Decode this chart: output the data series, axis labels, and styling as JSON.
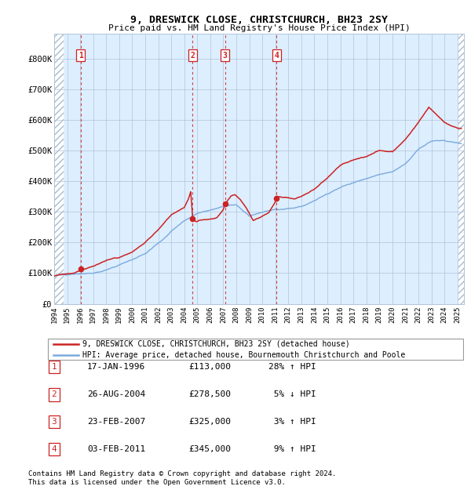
{
  "title": "9, DRESWICK CLOSE, CHRISTCHURCH, BH23 2SY",
  "subtitle": "Price paid vs. HM Land Registry's House Price Index (HPI)",
  "legend_line1": "9, DRESWICK CLOSE, CHRISTCHURCH, BH23 2SY (detached house)",
  "legend_line2": "HPI: Average price, detached house, Bournemouth Christchurch and Poole",
  "footnote1": "Contains HM Land Registry data © Crown copyright and database right 2024.",
  "footnote2": "This data is licensed under the Open Government Licence v3.0.",
  "transactions": [
    {
      "num": 1,
      "date": "17-JAN-1996",
      "price": 113000,
      "pct": "28%",
      "dir": "↑",
      "year": 1996.04
    },
    {
      "num": 2,
      "date": "26-AUG-2004",
      "price": 278500,
      "pct": "5%",
      "dir": "↓",
      "year": 2004.65
    },
    {
      "num": 3,
      "date": "23-FEB-2007",
      "price": 325000,
      "pct": "3%",
      "dir": "↑",
      "year": 2007.14
    },
    {
      "num": 4,
      "date": "03-FEB-2011",
      "price": 345000,
      "pct": "9%",
      "dir": "↑",
      "year": 2011.09
    }
  ],
  "table_rows": [
    [
      "1",
      "17-JAN-1996",
      "£113,000",
      "28% ↑ HPI"
    ],
    [
      "2",
      "26-AUG-2004",
      "£278,500",
      " 5% ↓ HPI"
    ],
    [
      "3",
      "23-FEB-2007",
      "£325,000",
      " 3% ↑ HPI"
    ],
    [
      "4",
      "03-FEB-2011",
      "£345,000",
      " 9% ↑ HPI"
    ]
  ],
  "xlim": [
    1994.0,
    2025.5
  ],
  "ylim": [
    0,
    880000
  ],
  "yticks": [
    0,
    100000,
    200000,
    300000,
    400000,
    500000,
    600000,
    700000,
    800000
  ],
  "ytick_labels": [
    "£0",
    "£100K",
    "£200K",
    "£300K",
    "£400K",
    "£500K",
    "£600K",
    "£700K",
    "£800K"
  ],
  "xticks": [
    1994,
    1995,
    1996,
    1997,
    1998,
    1999,
    2000,
    2001,
    2002,
    2003,
    2004,
    2005,
    2006,
    2007,
    2008,
    2009,
    2010,
    2011,
    2012,
    2013,
    2014,
    2015,
    2016,
    2017,
    2018,
    2019,
    2020,
    2021,
    2022,
    2023,
    2024,
    2025
  ],
  "hpi_color": "#7aaadd",
  "price_color": "#cc2222",
  "dot_color": "#cc2222",
  "bg_color": "#ddeeff",
  "hatch_color": "#aabbcc",
  "grid_color": "#b0c4d8",
  "box_color": "#cc2222",
  "hpi_anchors": [
    [
      1994.0,
      88000
    ],
    [
      1995.0,
      87000
    ],
    [
      1996.0,
      91000
    ],
    [
      1997.0,
      97000
    ],
    [
      1998.0,
      107000
    ],
    [
      1999.0,
      119000
    ],
    [
      2000.0,
      134000
    ],
    [
      2001.0,
      153000
    ],
    [
      2002.0,
      188000
    ],
    [
      2003.0,
      228000
    ],
    [
      2004.0,
      262000
    ],
    [
      2005.0,
      288000
    ],
    [
      2006.0,
      302000
    ],
    [
      2007.0,
      313000
    ],
    [
      2008.0,
      318000
    ],
    [
      2009.0,
      283000
    ],
    [
      2010.0,
      298000
    ],
    [
      2011.0,
      308000
    ],
    [
      2012.0,
      313000
    ],
    [
      2013.0,
      318000
    ],
    [
      2014.0,
      338000
    ],
    [
      2015.0,
      362000
    ],
    [
      2016.0,
      382000
    ],
    [
      2017.0,
      398000
    ],
    [
      2018.0,
      413000
    ],
    [
      2019.0,
      428000
    ],
    [
      2020.0,
      438000
    ],
    [
      2021.0,
      468000
    ],
    [
      2022.0,
      518000
    ],
    [
      2023.0,
      543000
    ],
    [
      2024.0,
      548000
    ],
    [
      2025.3,
      538000
    ]
  ],
  "price_anchors": [
    [
      1994.0,
      94000
    ],
    [
      1995.5,
      104000
    ],
    [
      1996.04,
      113000
    ],
    [
      1997.0,
      128000
    ],
    [
      1998.0,
      146000
    ],
    [
      1999.0,
      156000
    ],
    [
      2000.0,
      176000
    ],
    [
      2001.0,
      208000
    ],
    [
      2002.0,
      246000
    ],
    [
      2003.0,
      292000
    ],
    [
      2004.0,
      316000
    ],
    [
      2004.3,
      342000
    ],
    [
      2004.5,
      368000
    ],
    [
      2004.65,
      278500
    ],
    [
      2004.9,
      268000
    ],
    [
      2005.2,
      273000
    ],
    [
      2005.8,
      276000
    ],
    [
      2006.5,
      283000
    ],
    [
      2007.0,
      308000
    ],
    [
      2007.14,
      325000
    ],
    [
      2007.6,
      352000
    ],
    [
      2007.9,
      356000
    ],
    [
      2008.3,
      340000
    ],
    [
      2008.8,
      308000
    ],
    [
      2009.3,
      268000
    ],
    [
      2009.8,
      278000
    ],
    [
      2010.5,
      293000
    ],
    [
      2011.0,
      328000
    ],
    [
      2011.09,
      345000
    ],
    [
      2011.8,
      343000
    ],
    [
      2012.5,
      338000
    ],
    [
      2013.0,
      348000
    ],
    [
      2014.0,
      373000
    ],
    [
      2015.0,
      408000
    ],
    [
      2016.0,
      448000
    ],
    [
      2017.0,
      468000
    ],
    [
      2018.0,
      478000
    ],
    [
      2019.0,
      498000
    ],
    [
      2020.0,
      493000
    ],
    [
      2021.0,
      533000
    ],
    [
      2022.0,
      588000
    ],
    [
      2022.8,
      638000
    ],
    [
      2023.2,
      622000
    ],
    [
      2024.0,
      588000
    ],
    [
      2025.0,
      568000
    ],
    [
      2025.3,
      566000
    ]
  ]
}
